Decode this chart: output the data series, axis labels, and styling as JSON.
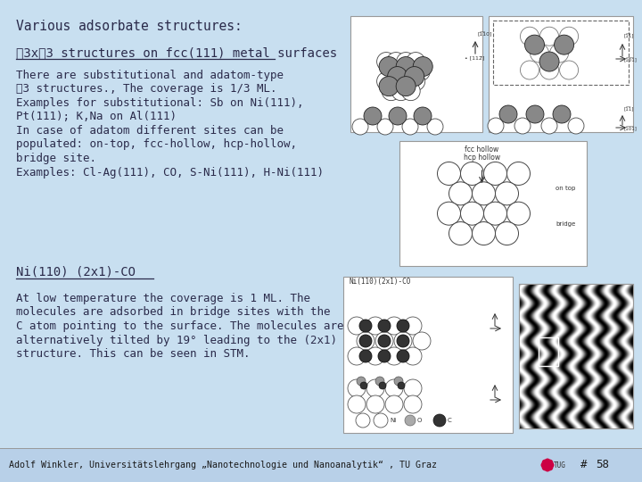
{
  "bg_color": "#c8dff0",
  "footer_bg": "#b8d0e8",
  "title_text": "Various adsorbate structures:",
  "section1_heading": "∖3x∖3 structures on fcc(111) metal surfaces",
  "section1_body": [
    "There are substitutional and adatom-type",
    "∖3 structures., The coverage is 1/3 ML.",
    "Examples for substitutional: Sb on Ni(111),",
    "Pt(111); K,Na on Al(111)",
    "In case of adatom different sites can be",
    "populated: on-top, fcc-hollow, hcp-hollow,",
    "bridge site.",
    "Examples: Cl-Ag(111), CO, S-Ni(111), H-Ni(111)"
  ],
  "section2_heading": "Ni(110) (2x1)-CO",
  "section2_body": [
    "At low temperature the coverage is 1 ML. The",
    "molecules are adsorbed in bridge sites with the",
    "C atom pointing to the surface. The molecules are",
    "alternatively tilted by 19° leading to the (2x1)",
    "structure. This can be seen in STM."
  ],
  "footer_text": "Adolf Winkler, Universitätslehrgang „Nanotechnologie und Nanoanalytik“ , TU Graz",
  "footer_hash": "#",
  "footer_page": "58",
  "text_color": "#2a2a4a",
  "footer_color": "#1a1a1a",
  "tug_color": "#cc0044",
  "box_edge": "#aaaaaa",
  "box_face": "#ffffff",
  "substrate_fill": "#e8e8e8",
  "substrate_edge": "#444444",
  "adatom_fill": "#888888",
  "adatom_edge": "#222222",
  "dark_atom_fill": "#333333",
  "dark_atom_edge": "#111111"
}
